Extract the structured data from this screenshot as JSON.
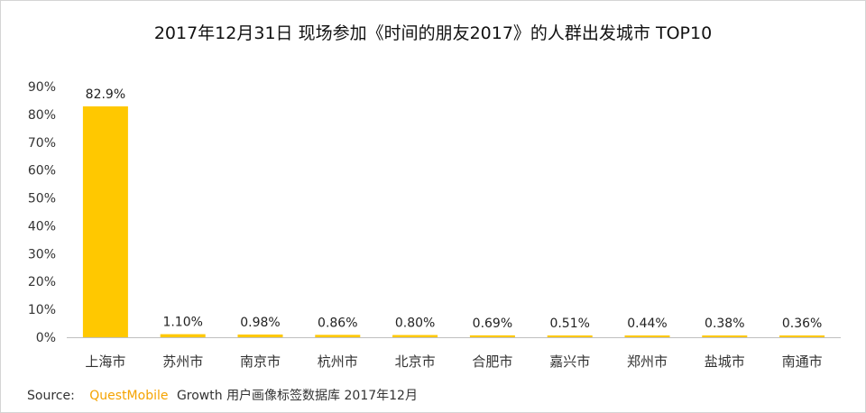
{
  "chart_data": {
    "type": "bar",
    "title": "2017年12月31日 现场参加《时间的朋友2017》的人群出发城市 TOP10",
    "categories": [
      "上海市",
      "苏州市",
      "南京市",
      "杭州市",
      "北京市",
      "合肥市",
      "嘉兴市",
      "郑州市",
      "盐城市",
      "南通市"
    ],
    "values": [
      82.9,
      1.1,
      0.98,
      0.86,
      0.8,
      0.69,
      0.51,
      0.44,
      0.38,
      0.36
    ],
    "value_labels": [
      "82.9%",
      "1.10%",
      "0.98%",
      "0.86%",
      "0.80%",
      "0.69%",
      "0.51%",
      "0.44%",
      "0.38%",
      "0.36%"
    ],
    "yticks": [
      "0%",
      "10%",
      "20%",
      "30%",
      "40%",
      "50%",
      "60%",
      "70%",
      "80%",
      "90%"
    ],
    "ylim": [
      0,
      90
    ],
    "xlabel": "",
    "ylabel": "",
    "grid": false,
    "bar_color": "#FFC800"
  },
  "source": {
    "label": "Source:",
    "brand": "QuestMobile",
    "text": "Growth 用户画像标签数据库 2017年12月"
  },
  "colors": {
    "bar": "#FFC800",
    "brand": "#F5A300",
    "axis": "#BFBFBF"
  }
}
